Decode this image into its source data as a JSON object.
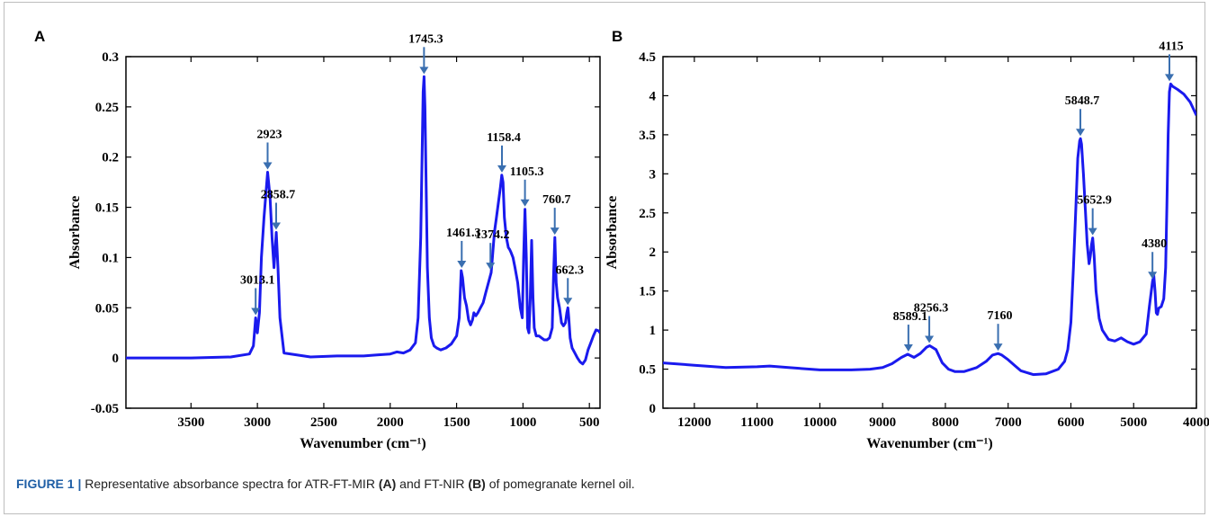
{
  "figure": {
    "caption_label": "FIGURE 1",
    "caption_separator": "|",
    "caption_part1": "Representative absorbance spectra for ATR-FT-MIR ",
    "caption_ref_a": "(A)",
    "caption_part2": " and FT-NIR ",
    "caption_ref_b": "(B)",
    "caption_part3": " of pomegranate kernel oil."
  },
  "colors": {
    "spectrum": "#1a1aee",
    "arrow": "#3a6fb0",
    "axis": "#000000"
  },
  "chart_data": [
    {
      "type": "line",
      "panel_label": "A",
      "title": "",
      "xlabel": "Wavenumber (cm⁻¹)",
      "ylabel": "Absorbance",
      "xlim": [
        3990,
        420
      ],
      "ylim": [
        -0.05,
        0.3
      ],
      "x_reversed": true,
      "x_ticks": [
        3500,
        3000,
        2500,
        2000,
        1500,
        1000,
        500
      ],
      "y_ticks": [
        -0.05,
        0,
        0.05,
        0.1,
        0.15,
        0.2,
        0.25,
        0.3
      ],
      "y_tick_labels": [
        "-0.05",
        "0",
        "0.05",
        "0.1",
        "0.15",
        "0.2",
        "0.25",
        "0.3"
      ],
      "grid": false,
      "series": [
        {
          "x": [
            3990,
            3500,
            3200,
            3060,
            3030,
            3013,
            3000,
            2985,
            2970,
            2950,
            2923,
            2905,
            2890,
            2875,
            2858,
            2845,
            2830,
            2800,
            2600,
            2400,
            2200,
            2100,
            2000,
            1950,
            1900,
            1850,
            1810,
            1790,
            1770,
            1760,
            1752,
            1745,
            1738,
            1730,
            1720,
            1705,
            1690,
            1670,
            1650,
            1620,
            1580,
            1540,
            1500,
            1480,
            1465,
            1455,
            1440,
            1425,
            1410,
            1395,
            1380,
            1370,
            1355,
            1340,
            1320,
            1300,
            1280,
            1260,
            1240,
            1230,
            1215,
            1200,
            1185,
            1170,
            1160,
            1150,
            1140,
            1125,
            1110,
            1100,
            1090,
            1075,
            1060,
            1040,
            1020,
            1005,
            995,
            985,
            975,
            965,
            955,
            945,
            935,
            925,
            915,
            900,
            880,
            860,
            840,
            820,
            800,
            780,
            770,
            760,
            750,
            740,
            725,
            710,
            695,
            680,
            670,
            662,
            655,
            645,
            630,
            610,
            590,
            570,
            550,
            530,
            510,
            490,
            470,
            450,
            430,
            420
          ],
          "y": [
            0.0,
            0.0,
            0.001,
            0.004,
            0.012,
            0.04,
            0.025,
            0.045,
            0.1,
            0.14,
            0.185,
            0.16,
            0.12,
            0.09,
            0.125,
            0.09,
            0.04,
            0.005,
            0.001,
            0.002,
            0.002,
            0.003,
            0.004,
            0.006,
            0.005,
            0.008,
            0.015,
            0.04,
            0.12,
            0.2,
            0.265,
            0.28,
            0.25,
            0.18,
            0.09,
            0.04,
            0.02,
            0.012,
            0.01,
            0.008,
            0.01,
            0.014,
            0.022,
            0.04,
            0.087,
            0.08,
            0.06,
            0.052,
            0.038,
            0.033,
            0.038,
            0.045,
            0.042,
            0.045,
            0.05,
            0.055,
            0.065,
            0.075,
            0.085,
            0.1,
            0.125,
            0.14,
            0.155,
            0.17,
            0.182,
            0.175,
            0.14,
            0.12,
            0.11,
            0.108,
            0.105,
            0.1,
            0.09,
            0.075,
            0.05,
            0.04,
            0.1,
            0.148,
            0.1,
            0.03,
            0.025,
            0.06,
            0.117,
            0.06,
            0.03,
            0.022,
            0.022,
            0.02,
            0.018,
            0.018,
            0.02,
            0.03,
            0.08,
            0.12,
            0.075,
            0.06,
            0.05,
            0.035,
            0.032,
            0.035,
            0.045,
            0.05,
            0.04,
            0.02,
            0.01,
            0.005,
            0.0,
            -0.004,
            -0.006,
            -0.002,
            0.008,
            0.015,
            0.022,
            0.028,
            0.027,
            0.025
          ]
        }
      ],
      "annotations": [
        {
          "label": "3013.1",
          "x": 3013.1,
          "y": 0.04
        },
        {
          "label": "2923",
          "x": 2923,
          "y": 0.185
        },
        {
          "label": "2858.7",
          "x": 2858.7,
          "y": 0.125
        },
        {
          "label": "1745.3",
          "x": 1745.3,
          "y": 0.28
        },
        {
          "label": "1461.3",
          "x": 1461.3,
          "y": 0.087
        },
        {
          "label": "1374.2",
          "x": 1245,
          "y": 0.085
        },
        {
          "label": "1158.4",
          "x": 1158.4,
          "y": 0.182
        },
        {
          "label": "1105.3",
          "x": 985,
          "y": 0.148
        },
        {
          "label": "760.7",
          "x": 760.7,
          "y": 0.12
        },
        {
          "label": "662.3",
          "x": 662.3,
          "y": 0.05
        }
      ]
    },
    {
      "type": "line",
      "panel_label": "B",
      "title": "",
      "xlabel": "Wavenumber (cm⁻¹)",
      "ylabel": "Absorbance",
      "xlim": [
        12500,
        4000
      ],
      "ylim": [
        0,
        4.5
      ],
      "x_reversed": true,
      "x_ticks": [
        12000,
        11000,
        10000,
        9000,
        8000,
        7000,
        6000,
        5000,
        4000
      ],
      "y_ticks": [
        0,
        0.5,
        1,
        1.5,
        2,
        2.5,
        3,
        3.5,
        4,
        4.5
      ],
      "y_tick_labels": [
        "0",
        "0.5",
        "1",
        "1.5",
        "2",
        "2.5",
        "3",
        "3.5",
        "4",
        "4.5"
      ],
      "grid": false,
      "series": [
        {
          "x": [
            12500,
            12000,
            11500,
            11000,
            10800,
            10500,
            10000,
            9500,
            9200,
            9000,
            8850,
            8700,
            8600,
            8500,
            8400,
            8300,
            8250,
            8150,
            8050,
            7950,
            7850,
            7700,
            7500,
            7350,
            7250,
            7160,
            7100,
            7000,
            6900,
            6800,
            6600,
            6400,
            6200,
            6100,
            6050,
            6000,
            5960,
            5920,
            5890,
            5860,
            5848,
            5830,
            5800,
            5770,
            5740,
            5710,
            5690,
            5670,
            5652,
            5630,
            5600,
            5550,
            5500,
            5400,
            5300,
            5200,
            5100,
            5000,
            4900,
            4800,
            4750,
            4700,
            4680,
            4660,
            4640,
            4620,
            4600,
            4560,
            4520,
            4490,
            4470,
            4450,
            4430,
            4410,
            4380,
            4300,
            4200,
            4100,
            4000
          ],
          "y": [
            0.58,
            0.55,
            0.52,
            0.53,
            0.54,
            0.52,
            0.49,
            0.49,
            0.5,
            0.52,
            0.57,
            0.65,
            0.69,
            0.65,
            0.7,
            0.78,
            0.8,
            0.75,
            0.58,
            0.5,
            0.47,
            0.47,
            0.52,
            0.6,
            0.68,
            0.7,
            0.68,
            0.62,
            0.55,
            0.48,
            0.43,
            0.44,
            0.5,
            0.6,
            0.75,
            1.1,
            1.8,
            2.6,
            3.2,
            3.42,
            3.45,
            3.38,
            3.0,
            2.55,
            2.1,
            1.85,
            1.95,
            2.1,
            2.18,
            1.95,
            1.5,
            1.15,
            1.0,
            0.88,
            0.86,
            0.9,
            0.85,
            0.82,
            0.85,
            0.95,
            1.3,
            1.62,
            1.7,
            1.5,
            1.22,
            1.2,
            1.28,
            1.3,
            1.4,
            1.8,
            2.6,
            3.5,
            4.05,
            4.15,
            4.12,
            4.08,
            4.02,
            3.92,
            3.75
          ]
        }
      ],
      "annotations": [
        {
          "label": "8589.1",
          "x": 8589.1,
          "y": 0.69
        },
        {
          "label": "8256.3",
          "x": 8256.3,
          "y": 0.8
        },
        {
          "label": "7160",
          "x": 7160,
          "y": 0.7
        },
        {
          "label": "5848.7",
          "x": 5848.7,
          "y": 3.45
        },
        {
          "label": "5652.9",
          "x": 5652.9,
          "y": 2.18
        },
        {
          "label": "4380",
          "x": 4700,
          "y": 1.62
        },
        {
          "label": "4115",
          "x": 4430,
          "y": 4.15
        }
      ]
    }
  ]
}
